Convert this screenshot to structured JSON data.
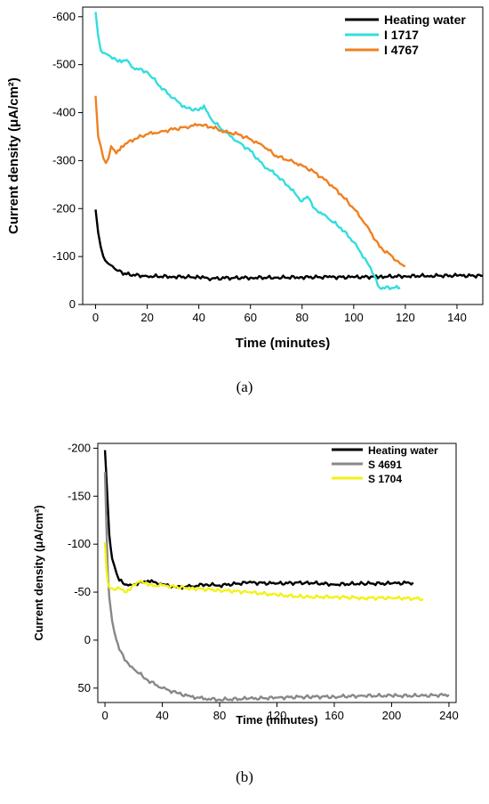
{
  "chart_data": [
    {
      "type": "line",
      "caption": "(a)",
      "xlabel": "Time (minutes)",
      "ylabel": "Current density (μA/cm²)",
      "xlim": [
        -5,
        150
      ],
      "ylim": [
        0,
        -620
      ],
      "xticks": [
        "0",
        "20",
        "40",
        "60",
        "80",
        "100",
        "120",
        "140"
      ],
      "yticks": [
        "0",
        "-100",
        "-200",
        "-300",
        "-400",
        "-500",
        "-600"
      ],
      "legend_position": "top-right",
      "series": [
        {
          "name": "Heating water",
          "color": "#000000",
          "x": [
            0,
            1,
            2,
            3,
            5,
            8,
            12,
            20,
            30,
            40,
            45,
            50,
            60,
            70,
            80,
            90,
            100,
            110,
            120,
            130,
            140,
            150
          ],
          "y": [
            -198,
            -150,
            -120,
            -100,
            -85,
            -72,
            -63,
            -59,
            -58,
            -57,
            -54,
            -55,
            -56,
            -56,
            -57,
            -57,
            -57,
            -58,
            -59,
            -60,
            -60,
            -60
          ]
        },
        {
          "name": "I 1717",
          "color": "#33dddd",
          "x": [
            0,
            1,
            2,
            5,
            8,
            10,
            12,
            14,
            20,
            25,
            30,
            35,
            40,
            42,
            45,
            50,
            55,
            60,
            65,
            70,
            75,
            80,
            82,
            85,
            90,
            95,
            100,
            105,
            108,
            110,
            118
          ],
          "y": [
            -610,
            -560,
            -530,
            -520,
            -510,
            -505,
            -510,
            -495,
            -485,
            -455,
            -430,
            -410,
            -405,
            -415,
            -385,
            -360,
            -340,
            -320,
            -290,
            -270,
            -245,
            -215,
            -225,
            -200,
            -180,
            -160,
            -130,
            -90,
            -60,
            -35,
            -35
          ]
        },
        {
          "name": "I 4767",
          "color": "#f08020",
          "x": [
            0,
            1,
            2,
            3,
            4,
            5,
            6,
            8,
            10,
            15,
            20,
            25,
            30,
            35,
            40,
            45,
            50,
            55,
            60,
            65,
            70,
            75,
            80,
            85,
            90,
            95,
            100,
            105,
            110,
            115,
            118,
            120
          ],
          "y": [
            -435,
            -350,
            -330,
            -305,
            -295,
            -305,
            -330,
            -315,
            -330,
            -345,
            -355,
            -360,
            -365,
            -370,
            -375,
            -370,
            -360,
            -355,
            -345,
            -330,
            -310,
            -300,
            -290,
            -275,
            -255,
            -230,
            -200,
            -165,
            -120,
            -100,
            -85,
            -80
          ]
        }
      ]
    },
    {
      "type": "line",
      "caption": "(b)",
      "xlabel": "Time (minutes)",
      "ylabel": "Current density (μA/cm²)",
      "xlim": [
        -5,
        245
      ],
      "ylim": [
        65,
        -205
      ],
      "xticks": [
        "0",
        "40",
        "80",
        "120",
        "160",
        "200",
        "240"
      ],
      "yticks": [
        "-200",
        "-150",
        "-100",
        "-50",
        "0",
        "50"
      ],
      "legend_position": "top-right",
      "series": [
        {
          "name": "Heating water",
          "color": "#000000",
          "x": [
            0,
            1,
            2,
            3,
            5,
            8,
            10,
            15,
            20,
            30,
            40,
            50,
            60,
            70,
            80,
            100,
            120,
            140,
            160,
            180,
            200,
            215
          ],
          "y": [
            -198,
            -170,
            -140,
            -110,
            -85,
            -70,
            -62,
            -58,
            -58,
            -62,
            -58,
            -55,
            -56,
            -58,
            -57,
            -60,
            -59,
            -60,
            -58,
            -59,
            -59,
            -60
          ]
        },
        {
          "name": "S 4691",
          "color": "#888888",
          "x": [
            0,
            1,
            2,
            3,
            5,
            8,
            10,
            15,
            20,
            30,
            40,
            50,
            60,
            70,
            80,
            100,
            120,
            140,
            160,
            180,
            200,
            220,
            240
          ],
          "y": [
            -175,
            -120,
            -70,
            -45,
            -20,
            0,
            10,
            22,
            30,
            42,
            50,
            55,
            59,
            61,
            62,
            61,
            60,
            59,
            59,
            58,
            58,
            58,
            57
          ]
        },
        {
          "name": "S 1704",
          "color": "#f2f21a",
          "x": [
            0,
            1,
            2,
            3,
            5,
            8,
            10,
            15,
            20,
            25,
            30,
            40,
            60,
            80,
            100,
            120,
            140,
            160,
            180,
            200,
            222
          ],
          "y": [
            -102,
            -75,
            -60,
            -55,
            -54,
            -53,
            -54,
            -50,
            -58,
            -62,
            -57,
            -57,
            -54,
            -52,
            -50,
            -47,
            -45,
            -45,
            -44,
            -44,
            -43
          ]
        }
      ]
    }
  ]
}
